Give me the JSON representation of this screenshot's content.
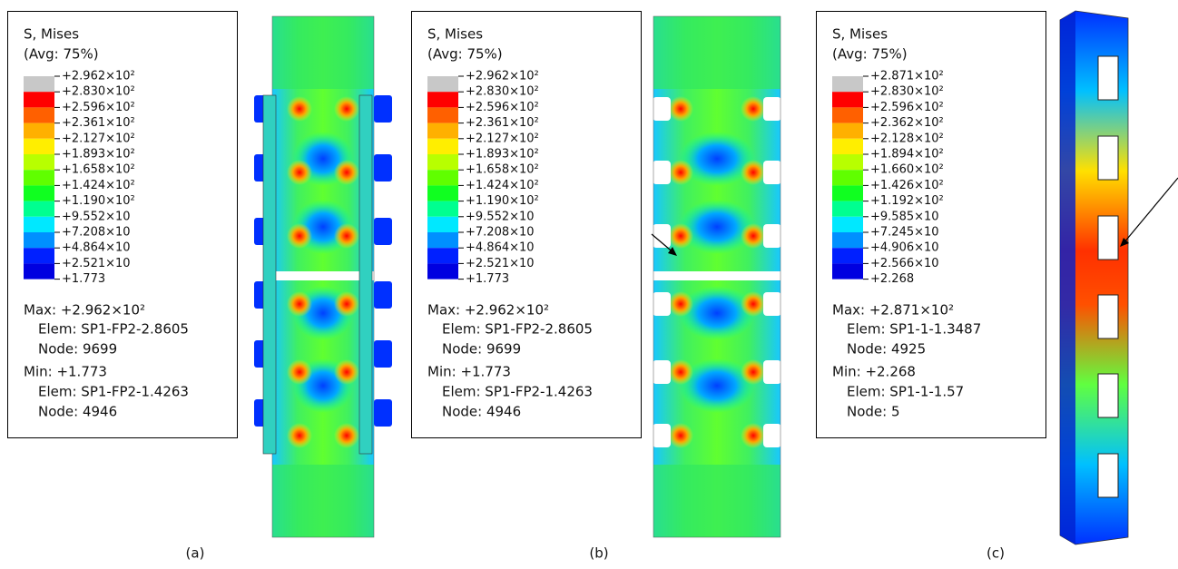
{
  "panels": [
    {
      "legend": {
        "title": "S, Mises",
        "average": "(Avg: 75%)",
        "labels": [
          "+2.962×10²",
          "+2.830×10²",
          "+2.596×10²",
          "+2.361×10²",
          "+2.127×10²",
          "+1.893×10²",
          "+1.658×10²",
          "+1.424×10²",
          "+1.190×10²",
          "+9.552×10",
          "+7.208×10",
          "+4.864×10",
          "+2.521×10",
          "+1.773"
        ],
        "max": "Max: +2.962×10²",
        "max_elem": "Elem: SP1-FP2-2.8605",
        "max_node": "Node: 9699",
        "min": "Min: +1.773",
        "min_elem": "Elem: SP1-FP2-1.4263",
        "min_node": "Node: 4946"
      },
      "caption": "(a)"
    },
    {
      "legend": {
        "title": "S, Mises",
        "average": "(Avg: 75%)",
        "labels": [
          "+2.962×10²",
          "+2.830×10²",
          "+2.596×10²",
          "+2.361×10²",
          "+2.127×10²",
          "+1.893×10²",
          "+1.658×10²",
          "+1.424×10²",
          "+1.190×10²",
          "+9.552×10",
          "+7.208×10",
          "+4.864×10",
          "+2.521×10",
          "+1.773"
        ],
        "max": "Max: +2.962×10²",
        "max_elem": "Elem: SP1-FP2-2.8605",
        "max_node": "Node: 9699",
        "min": "Min: +1.773",
        "min_elem": "Elem: SP1-FP2-1.4263",
        "min_node": "Node: 4946"
      },
      "caption": "(b)"
    },
    {
      "legend": {
        "title": "S, Mises",
        "average": "(Avg: 75%)",
        "labels": [
          "+2.871×10²",
          "+2.830×10²",
          "+2.596×10²",
          "+2.362×10²",
          "+2.128×10²",
          "+1.894×10²",
          "+1.660×10²",
          "+1.426×10²",
          "+1.192×10²",
          "+9.585×10",
          "+7.245×10",
          "+4.906×10",
          "+2.566×10",
          "+2.268"
        ],
        "max": "Max: +2.871×10²",
        "max_elem": "Elem: SP1-1-1.3487",
        "max_node": "Node: 4925",
        "min": "Min: +2.268",
        "min_elem": "Elem: SP1-1-1.57",
        "min_node": "Node: 5"
      },
      "caption": "(c)"
    }
  ]
}
